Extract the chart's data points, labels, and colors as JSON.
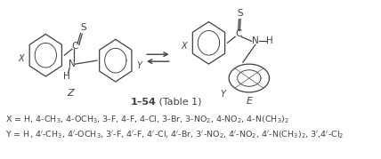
{
  "figsize": [
    4.28,
    1.79
  ],
  "dpi": 100,
  "bg_color": "#ffffff",
  "lc": "#404040",
  "lw": 0.9,
  "line1_main": "X = H, 4-CH",
  "line1_sub1": "3",
  "line2_main": "Y = H, 4′-CH",
  "label_Z": "Z",
  "label_E": "E",
  "label_compound": "1–54",
  "label_table": " (Table 1)"
}
